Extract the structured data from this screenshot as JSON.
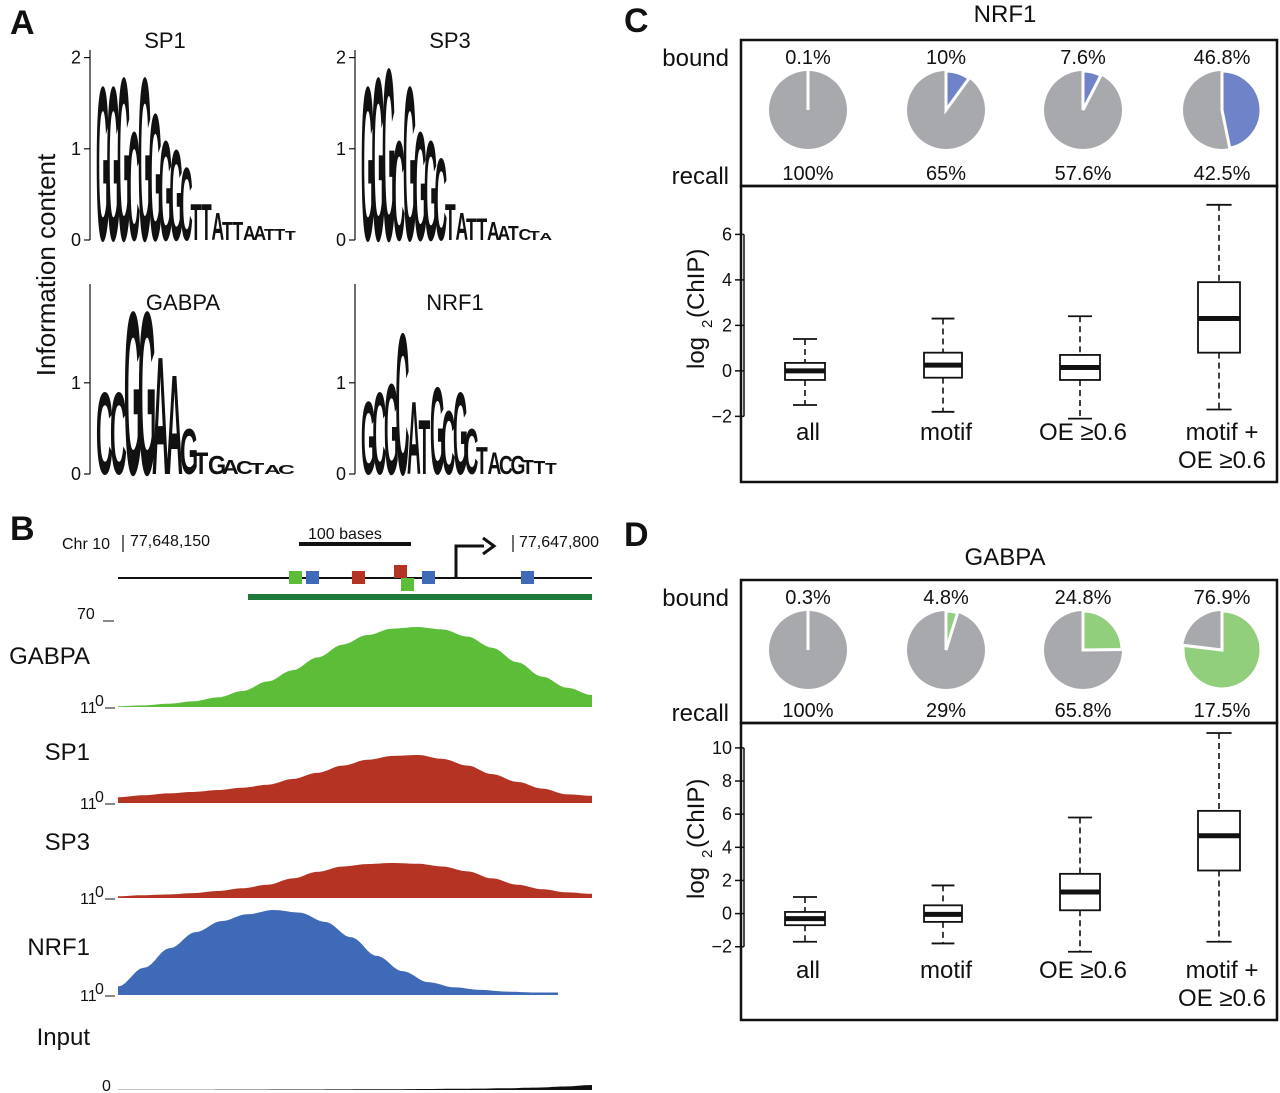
{
  "panels": {
    "a": "A",
    "b": "B",
    "c": "C",
    "d": "D"
  },
  "panel_a": {
    "ylabel": "Information content",
    "logos": [
      {
        "title": "SP1",
        "yticks": [
          "0",
          "1",
          "2"
        ],
        "letters": [
          "G",
          "G",
          "G",
          "C",
          "G",
          "G",
          "G",
          "G",
          "C",
          "T",
          "T",
          "A",
          "T",
          "T",
          "A",
          "A",
          "T",
          "T",
          "T"
        ]
      },
      {
        "title": "SP3",
        "yticks": [
          "0",
          "1",
          "2"
        ],
        "letters": [
          "G",
          "G",
          "G",
          "C",
          "G",
          "G",
          "G",
          "C",
          "T",
          "A",
          "T",
          "T",
          "A",
          "A",
          "T",
          "C",
          "T",
          "A"
        ]
      },
      {
        "title": "GABPA",
        "yticks": [
          "0",
          "1"
        ],
        "letters": [
          "C",
          "C",
          "G",
          "G",
          "A",
          "A",
          "G",
          "T",
          "G",
          "A",
          "C",
          "T",
          "A",
          "C"
        ]
      },
      {
        "title": "NRF1",
        "yticks": [
          "0",
          "1"
        ],
        "letters": [
          "G",
          "C",
          "G",
          "C",
          "A",
          "T",
          "G",
          "C",
          "G",
          "C",
          "T",
          "A",
          "C",
          "G",
          "T",
          "T",
          "T"
        ]
      }
    ]
  },
  "panel_b": {
    "chrom": "Chr 10",
    "left_coord": "77,648,150",
    "right_coord": "77,647,800",
    "scale_label": "100 bases",
    "track_max": "70",
    "track_min_left": "11",
    "track_min_right": "0",
    "tracks": [
      {
        "name": "GABPA",
        "color": "#5cbd39",
        "profile": [
          0.01,
          0.02,
          0.04,
          0.07,
          0.12,
          0.2,
          0.32,
          0.46,
          0.62,
          0.78,
          0.9,
          0.98,
          1.0,
          0.97,
          0.88,
          0.74,
          0.56,
          0.38,
          0.24,
          0.15
        ]
      },
      {
        "name": "SP1",
        "color": "#b43322",
        "profile": [
          0.12,
          0.16,
          0.2,
          0.23,
          0.27,
          0.32,
          0.38,
          0.5,
          0.63,
          0.78,
          0.9,
          0.98,
          1.0,
          0.92,
          0.78,
          0.6,
          0.44,
          0.3,
          0.18,
          0.15
        ]
      },
      {
        "name": "SP3",
        "color": "#b43322",
        "profile": [
          0.05,
          0.08,
          0.1,
          0.14,
          0.2,
          0.28,
          0.38,
          0.56,
          0.75,
          0.9,
          0.97,
          1.0,
          0.98,
          0.9,
          0.76,
          0.56,
          0.38,
          0.25,
          0.16,
          0.12
        ]
      },
      {
        "name": "NRF1",
        "color": "#3e6ab8",
        "profile": [
          0.1,
          0.32,
          0.55,
          0.74,
          0.87,
          0.95,
          1.0,
          0.97,
          0.86,
          0.68,
          0.46,
          0.28,
          0.15,
          0.09,
          0.06,
          0.04,
          0.03,
          0.03
        ]
      },
      {
        "name": "Input",
        "color": "#111111",
        "profile": [
          0.02,
          0.02,
          0.03,
          0.03,
          0.04,
          0.04,
          0.05,
          0.05,
          0.06,
          0.07,
          0.08,
          0.1,
          0.12,
          0.14,
          0.18,
          0.24,
          0.35,
          0.5
        ]
      }
    ],
    "input_zero": "0",
    "sites": [
      {
        "color": "#5cbd39"
      },
      {
        "color": "#3e6ab8"
      },
      {
        "color": "#b43322"
      },
      {
        "color": "#b43322"
      },
      {
        "color": "#5cbd39"
      },
      {
        "color": "#3e6ab8"
      },
      {
        "color": "#3e6ab8"
      }
    ]
  },
  "chart_data": [
    {
      "type": "boxplot",
      "title": "NRF1",
      "categories": [
        "all",
        "motif",
        "OE ≥0.6",
        "motif + OE ≥0.6"
      ],
      "category_lines": [
        [
          "all"
        ],
        [
          "motif"
        ],
        [
          "OE ≥0.6"
        ],
        [
          "motif +",
          "OE ≥0.6"
        ]
      ],
      "bound_label": "bound",
      "recall_label": "recall",
      "bound": [
        "0.1%",
        "10%",
        "7.6%",
        "46.8%"
      ],
      "bound_fraction": [
        0.001,
        0.1,
        0.076,
        0.468
      ],
      "recall": [
        "100%",
        "65%",
        "57.6%",
        "42.5%"
      ],
      "pie_color": "#6f84c8",
      "pie_rest": "#a8a9ad",
      "ylabel_main": "log",
      "ylabel_sub": "2",
      "ylabel_rest": "(ChIP)",
      "ylim": [
        -2.6,
        7.6
      ],
      "yticks": [
        -2,
        0,
        2,
        4,
        6
      ],
      "ytick_labels": [
        "−2",
        "0",
        "2",
        "4",
        "6"
      ],
      "boxes": [
        {
          "min": -1.5,
          "q1": -0.4,
          "median": 0.0,
          "q3": 0.35,
          "max": 1.4
        },
        {
          "min": -1.8,
          "q1": -0.3,
          "median": 0.25,
          "q3": 0.8,
          "max": 2.3
        },
        {
          "min": -2.1,
          "q1": -0.4,
          "median": 0.15,
          "q3": 0.7,
          "max": 2.4
        },
        {
          "min": -1.7,
          "q1": 0.8,
          "median": 2.3,
          "q3": 3.9,
          "max": 7.3
        }
      ]
    },
    {
      "type": "boxplot",
      "title": "GABPA",
      "categories": [
        "all",
        "motif",
        "OE ≥0.6",
        "motif + OE ≥0.6"
      ],
      "category_lines": [
        [
          "all"
        ],
        [
          "motif"
        ],
        [
          "OE ≥0.6"
        ],
        [
          "motif +",
          "OE ≥0.6"
        ]
      ],
      "bound_label": "bound",
      "recall_label": "recall",
      "bound": [
        "0.3%",
        "4.8%",
        "24.8%",
        "76.9%"
      ],
      "bound_fraction": [
        0.003,
        0.048,
        0.248,
        0.769
      ],
      "recall": [
        "100%",
        "29%",
        "65.8%",
        "17.5%"
      ],
      "pie_color": "#92cf7c",
      "pie_rest": "#a8a9ad",
      "ylabel_main": "log",
      "ylabel_sub": "2",
      "ylabel_rest": "(ChIP)",
      "ylim": [
        -2.8,
        11.2
      ],
      "yticks": [
        -2,
        0,
        2,
        4,
        6,
        8,
        10
      ],
      "ytick_labels": [
        "−2",
        "0",
        "2",
        "4",
        "6",
        "8",
        "10"
      ],
      "boxes": [
        {
          "min": -1.7,
          "q1": -0.7,
          "median": -0.3,
          "q3": 0.1,
          "max": 1.0
        },
        {
          "min": -1.8,
          "q1": -0.5,
          "median": -0.05,
          "q3": 0.5,
          "max": 1.7
        },
        {
          "min": -2.3,
          "q1": 0.2,
          "median": 1.3,
          "q3": 2.4,
          "max": 5.8
        },
        {
          "min": -1.7,
          "q1": 2.6,
          "median": 4.7,
          "q3": 6.2,
          "max": 10.9
        }
      ]
    }
  ],
  "colors": {
    "A": "#5cbd39",
    "C": "#2f4ea3",
    "G": "#f4a21d",
    "T": "#d12b2b"
  }
}
